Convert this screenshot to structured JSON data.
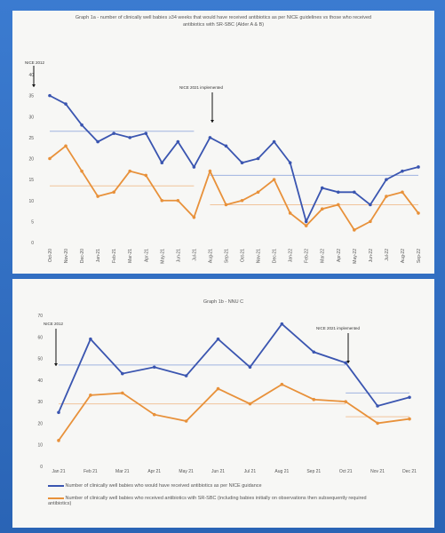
{
  "charts": [
    {
      "title": "Graph 1a - number of clinically well babies ≥34 weeks that would have received antibiotics as per NICE guidelines vs those who received antibiotics with SR-SBC (Alder A & B)",
      "annotations": [
        "NICE 2012",
        "NICE 2021 implemented"
      ],
      "chart_data": {
        "type": "line",
        "categories": [
          "Oct-20",
          "Nov-20",
          "Dec-20",
          "Jan-21",
          "Feb-21",
          "Mar-21",
          "Apr-21",
          "May-21",
          "Jun-21",
          "Jul-21",
          "Aug-21",
          "Sep-21",
          "Oct-21",
          "Nov-21",
          "Dec-21",
          "Jan-22",
          "Feb-22",
          "Mar-22",
          "Apr-22",
          "May-22",
          "Jun-22",
          "Jul-22",
          "Aug-22",
          "Sep-22"
        ],
        "ylim": [
          0,
          40
        ],
        "yticks": [
          0,
          5,
          10,
          15,
          20,
          25,
          30,
          35,
          40
        ],
        "series": [
          {
            "color": "#3a55b0",
            "values": [
              35,
              33,
              28,
              24,
              26,
              25,
              26,
              19,
              24,
              18,
              25,
              23,
              19,
              20,
              24,
              19,
              5,
              13,
              12,
              12,
              9,
              15,
              17,
              18
            ]
          },
          {
            "color": "#e8913a",
            "values": [
              20,
              23,
              17,
              11,
              12,
              17,
              16,
              10,
              10,
              6,
              17,
              9,
              10,
              12,
              15,
              7,
              4,
              8,
              9,
              3,
              5,
              11,
              12,
              7
            ]
          }
        ],
        "reference_lines": [
          {
            "color": "#9fb3e0",
            "segments": [
              [
                0,
                9,
                26.5
              ],
              [
                10,
                23,
                16
              ]
            ]
          },
          {
            "color": "#f1c39a",
            "segments": [
              [
                0,
                9,
                13.5
              ],
              [
                10,
                23,
                9
              ]
            ]
          }
        ]
      }
    },
    {
      "title": "Graph 1b - NNU C",
      "annotations": [
        "NICE 2012",
        "NICE 2021 implemented"
      ],
      "chart_data": {
        "type": "line",
        "categories": [
          "Jan 21",
          "Feb 21",
          "Mar 21",
          "Apr 21",
          "May 21",
          "Jun 21",
          "Jul 21",
          "Aug 21",
          "Sep 21",
          "Oct 21",
          "Nov 21",
          "Dec 21"
        ],
        "ylim": [
          0,
          70
        ],
        "yticks": [
          0,
          10,
          20,
          30,
          40,
          50,
          60,
          70
        ],
        "series": [
          {
            "color": "#3a55b0",
            "values": [
              25,
              59,
              43,
              46,
              42,
              59,
              46,
              66,
              53,
              48,
              28,
              32
            ]
          },
          {
            "color": "#e8913a",
            "values": [
              12,
              33,
              34,
              24,
              21,
              36,
              29,
              38,
              31,
              30,
              20,
              22
            ]
          }
        ],
        "reference_lines": [
          {
            "color": "#9fb3e0",
            "segments": [
              [
                0,
                9,
                47
              ],
              [
                9,
                11,
                34
              ]
            ]
          },
          {
            "color": "#f1c39a",
            "segments": [
              [
                0,
                9,
                29
              ],
              [
                9,
                11,
                23
              ]
            ]
          }
        ]
      },
      "legend": [
        {
          "color": "#3a55b0",
          "label": "Number of clinically well babies who would have received antibiotics as per NICE guidance"
        },
        {
          "color": "#e8913a",
          "label": "Number of clinically well babies who received antibiotics with SR-SBC (including babies initially on observations then subsequently required antibiotics)"
        }
      ]
    }
  ]
}
